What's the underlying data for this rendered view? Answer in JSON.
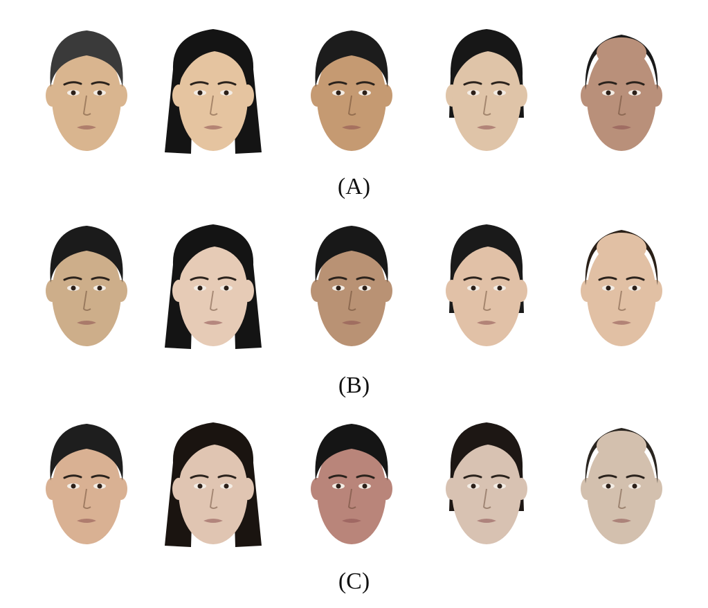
{
  "figure": {
    "rows": [
      {
        "caption": "(A)",
        "faces": [
          {
            "skin": "#d9b58f",
            "hair": "#3a3a3a",
            "hair_style": "short"
          },
          {
            "skin": "#e5c4a0",
            "hair": "#141414",
            "hair_style": "long"
          },
          {
            "skin": "#c59a72",
            "hair": "#1c1c1c",
            "hair_style": "short"
          },
          {
            "skin": "#dfc4a8",
            "hair": "#171717",
            "hair_style": "medium"
          },
          {
            "skin": "#b9907a",
            "hair": "#1a1a1a",
            "hair_style": "receding"
          }
        ]
      },
      {
        "caption": "(B)",
        "faces": [
          {
            "skin": "#cdae8a",
            "hair": "#1b1b1b",
            "hair_style": "short"
          },
          {
            "skin": "#e6cbb6",
            "hair": "#141414",
            "hair_style": "long"
          },
          {
            "skin": "#b99274",
            "hair": "#181818",
            "hair_style": "short"
          },
          {
            "skin": "#e1c1a7",
            "hair": "#1a1a1a",
            "hair_style": "medium"
          },
          {
            "skin": "#e1c0a4",
            "hair": "#2a2018",
            "hair_style": "receding"
          }
        ]
      },
      {
        "caption": "(C)",
        "faces": [
          {
            "skin": "#d9b193",
            "hair": "#1e1e1e",
            "hair_style": "short"
          },
          {
            "skin": "#e0c5b2",
            "hair": "#1a1410",
            "hair_style": "long"
          },
          {
            "skin": "#b9857a",
            "hair": "#151515",
            "hair_style": "short"
          },
          {
            "skin": "#d8c2b2",
            "hair": "#1d1714",
            "hair_style": "medium"
          },
          {
            "skin": "#d3c0ae",
            "hair": "#2a2520",
            "hair_style": "receding"
          }
        ]
      }
    ]
  }
}
